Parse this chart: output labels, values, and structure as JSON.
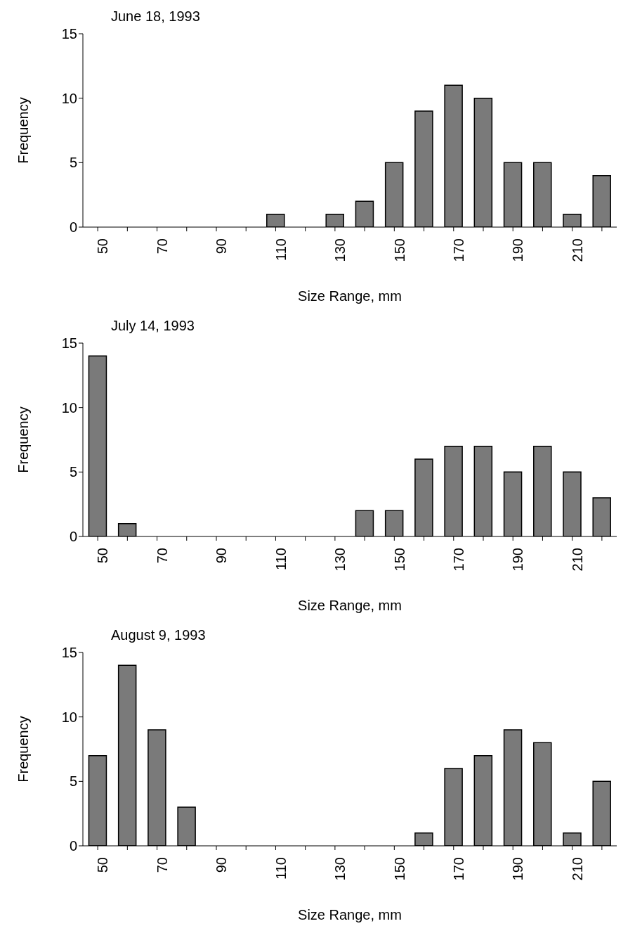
{
  "chart_data": [
    {
      "type": "bar",
      "title": "June 18, 1993",
      "xlabel": "Size Range, mm",
      "ylabel": "Frequency",
      "categories": [
        "50",
        null,
        "70",
        null,
        "90",
        null,
        "110",
        null,
        "130",
        null,
        "150",
        null,
        "170",
        null,
        "190",
        null,
        "210",
        null
      ],
      "values": [
        0,
        0,
        0,
        0,
        0,
        0,
        1,
        0,
        1,
        2,
        5,
        9,
        11,
        10,
        5,
        5,
        1,
        4
      ],
      "color": "#7a7a7a",
      "ylim": [
        0,
        15
      ],
      "yticks": [
        0,
        5,
        10,
        15
      ]
    },
    {
      "type": "bar",
      "title": "July 14, 1993",
      "xlabel": "Size Range, mm",
      "ylabel": "Frequency",
      "categories": [
        "50",
        null,
        "70",
        null,
        "90",
        null,
        "110",
        null,
        "130",
        null,
        "150",
        null,
        "170",
        null,
        "190",
        null,
        "210",
        null
      ],
      "values": [
        14,
        1,
        0,
        0,
        0,
        0,
        0,
        0,
        0,
        2,
        2,
        6,
        7,
        7,
        5,
        7,
        5,
        3
      ],
      "color": "#7a7a7a",
      "ylim": [
        0,
        15
      ],
      "yticks": [
        0,
        5,
        10,
        15
      ]
    },
    {
      "type": "bar",
      "title": "August 9, 1993",
      "xlabel": "Size Range, mm",
      "ylabel": "Frequency",
      "categories": [
        "50",
        null,
        "70",
        null,
        "90",
        null,
        "110",
        null,
        "130",
        null,
        "150",
        null,
        "170",
        null,
        "190",
        null,
        "210",
        null
      ],
      "values": [
        7,
        14,
        9,
        3,
        0,
        0,
        0,
        0,
        0,
        0,
        0,
        1,
        6,
        7,
        9,
        8,
        1,
        5
      ],
      "color": "#7a7a7a",
      "ylim": [
        0,
        15
      ],
      "yticks": [
        0,
        5,
        10,
        15
      ]
    }
  ]
}
